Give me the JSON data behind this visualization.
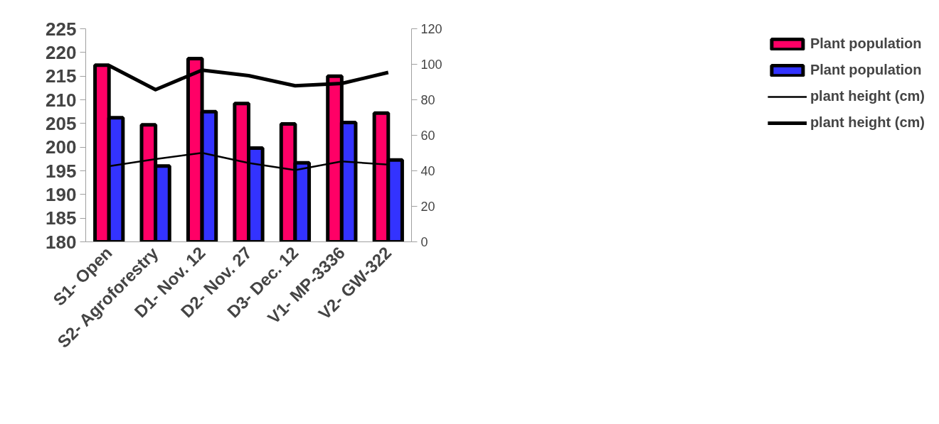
{
  "chart_data": {
    "type": "bar",
    "categories": [
      "S1- Open",
      "S2- Agroforestry",
      "D1- Nov. 12",
      "D2- Nov. 27",
      "D3- Dec. 12",
      "V1- MP-3336",
      "V2- GW-322"
    ],
    "series": [
      {
        "name": "Plant population",
        "color": "#ff0066",
        "values": [
          217.3,
          204.7,
          218.7,
          209.2,
          204.9,
          215.0,
          207.2
        ]
      },
      {
        "name": "Plant population",
        "color": "#3333ff",
        "values": [
          206.2,
          196.0,
          207.5,
          199.8,
          196.7,
          205.2,
          197.3
        ]
      },
      {
        "name": "plant height (cm)",
        "type": "line",
        "axis": "y2",
        "color": "#000000",
        "values": [
          42.6,
          46.6,
          50.1,
          44.4,
          40.4,
          45.3,
          43.5
        ]
      },
      {
        "name": "plant height (cm)",
        "type": "line",
        "axis": "y2",
        "color": "#000000",
        "values": [
          99.3,
          85.7,
          96.7,
          93.6,
          87.9,
          89.2,
          95.4
        ]
      }
    ],
    "ylim": [
      180,
      225
    ],
    "yticks": [
      180,
      185,
      190,
      195,
      200,
      205,
      210,
      215,
      220,
      225
    ],
    "y2lim": [
      0,
      120
    ],
    "y2ticks": [
      0,
      20,
      40,
      60,
      80,
      100,
      120
    ],
    "grid": false,
    "legend": "right",
    "marker": "none",
    "line_style": "solid"
  }
}
